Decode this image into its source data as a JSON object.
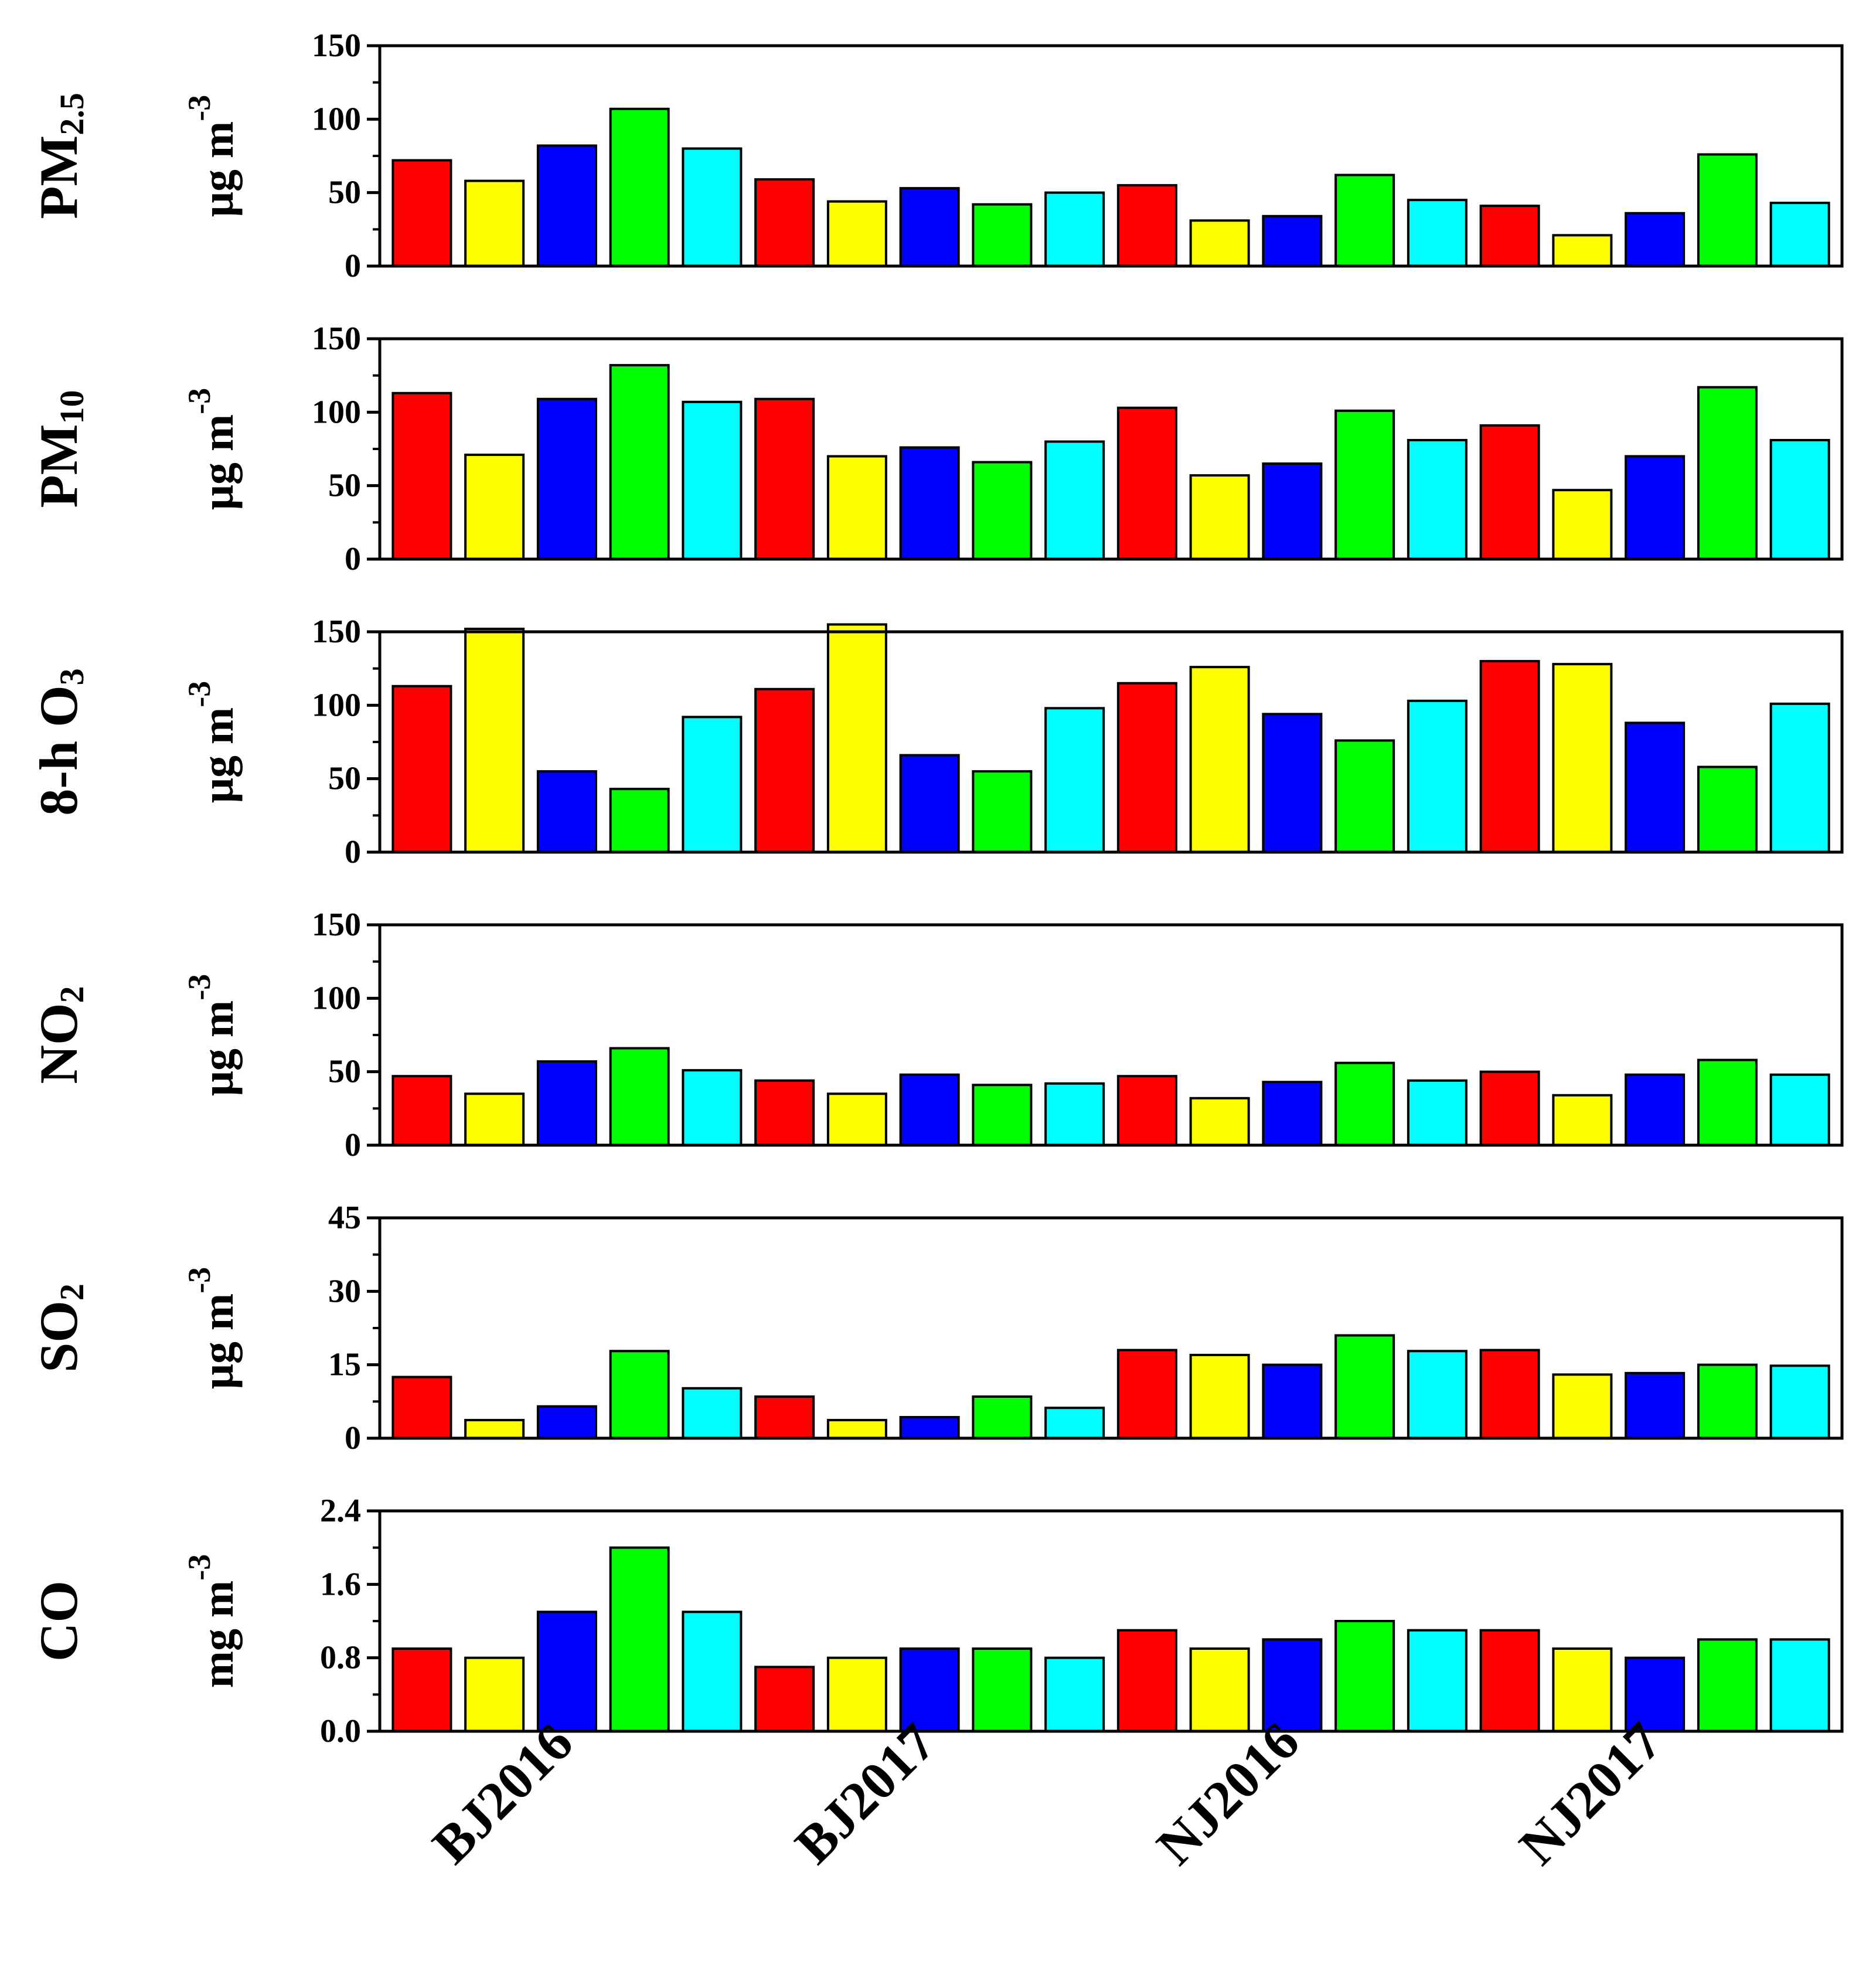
{
  "palette": [
    "#ff0000",
    "#ffff00",
    "#0000ff",
    "#00ff00",
    "#00ffff"
  ],
  "chart_data": {
    "type": "bar",
    "group_labels": [
      "BJ2016",
      "BJ2017",
      "NJ2016",
      "NJ2017"
    ],
    "bars_per_group": 5,
    "panels": [
      {
        "name": "pm25",
        "label_main": "PM",
        "label_sub": "2.5",
        "unit_main": "μg m",
        "unit_sup": "-3",
        "ylim": [
          0,
          150
        ],
        "yticks": [
          0,
          50,
          100,
          150
        ],
        "tick_labels": [
          "0",
          "50",
          "100",
          "150"
        ],
        "values": [
          72,
          58,
          82,
          107,
          80,
          59,
          44,
          53,
          42,
          50,
          55,
          31,
          34,
          62,
          45,
          41,
          21,
          36,
          76,
          43
        ]
      },
      {
        "name": "pm10",
        "label_main": "PM",
        "label_sub": "10",
        "unit_main": "μg m",
        "unit_sup": "-3",
        "ylim": [
          0,
          150
        ],
        "yticks": [
          0,
          50,
          100,
          150
        ],
        "tick_labels": [
          "0",
          "50",
          "100",
          "150"
        ],
        "values": [
          113,
          71,
          109,
          132,
          107,
          109,
          70,
          76,
          66,
          80,
          103,
          57,
          65,
          101,
          81,
          91,
          47,
          70,
          117,
          81
        ]
      },
      {
        "name": "o3",
        "label_main": "8-h O",
        "label_sub": "3",
        "unit_main": "μg m",
        "unit_sup": "-3",
        "ylim": [
          0,
          150
        ],
        "yticks": [
          0,
          50,
          100,
          150
        ],
        "tick_labels": [
          "0",
          "50",
          "100",
          "150"
        ],
        "values": [
          113,
          152,
          55,
          43,
          92,
          111,
          155,
          66,
          55,
          98,
          115,
          126,
          94,
          76,
          103,
          130,
          128,
          88,
          58,
          101
        ]
      },
      {
        "name": "no2",
        "label_main": "NO",
        "label_sub": "2",
        "unit_main": "μg m",
        "unit_sup": "-3",
        "ylim": [
          0,
          150
        ],
        "yticks": [
          0,
          50,
          100,
          150
        ],
        "tick_labels": [
          "0",
          "50",
          "100",
          "150"
        ],
        "values": [
          47,
          35,
          57,
          66,
          51,
          44,
          35,
          48,
          41,
          42,
          47,
          32,
          43,
          56,
          44,
          50,
          34,
          48,
          58,
          48
        ]
      },
      {
        "name": "so2",
        "label_main": "SO",
        "label_sub": "2",
        "unit_main": "μg m",
        "unit_sup": "-3",
        "ylim": [
          0,
          45
        ],
        "yticks": [
          0,
          15,
          30,
          45
        ],
        "tick_labels": [
          "0",
          "15",
          "30",
          "45"
        ],
        "values": [
          12.5,
          3.7,
          6.5,
          17.8,
          10.2,
          8.5,
          3.7,
          4.3,
          8.5,
          6.2,
          18,
          17,
          15,
          21,
          17.8,
          18,
          13,
          13.3,
          15,
          14.8
        ]
      },
      {
        "name": "co",
        "label_main": "CO",
        "label_sub": "",
        "unit_main": "mg m",
        "unit_sup": "-3",
        "ylim": [
          0,
          2.4
        ],
        "yticks": [
          0,
          0.8,
          1.6,
          2.4
        ],
        "tick_labels": [
          "0.0",
          "0.8",
          "1.6",
          "2.4"
        ],
        "values": [
          0.9,
          0.8,
          1.3,
          2.0,
          1.3,
          0.7,
          0.8,
          0.9,
          0.9,
          0.8,
          1.1,
          0.9,
          1.0,
          1.2,
          1.1,
          1.1,
          0.9,
          0.8,
          1.0,
          1.0
        ]
      }
    ]
  }
}
